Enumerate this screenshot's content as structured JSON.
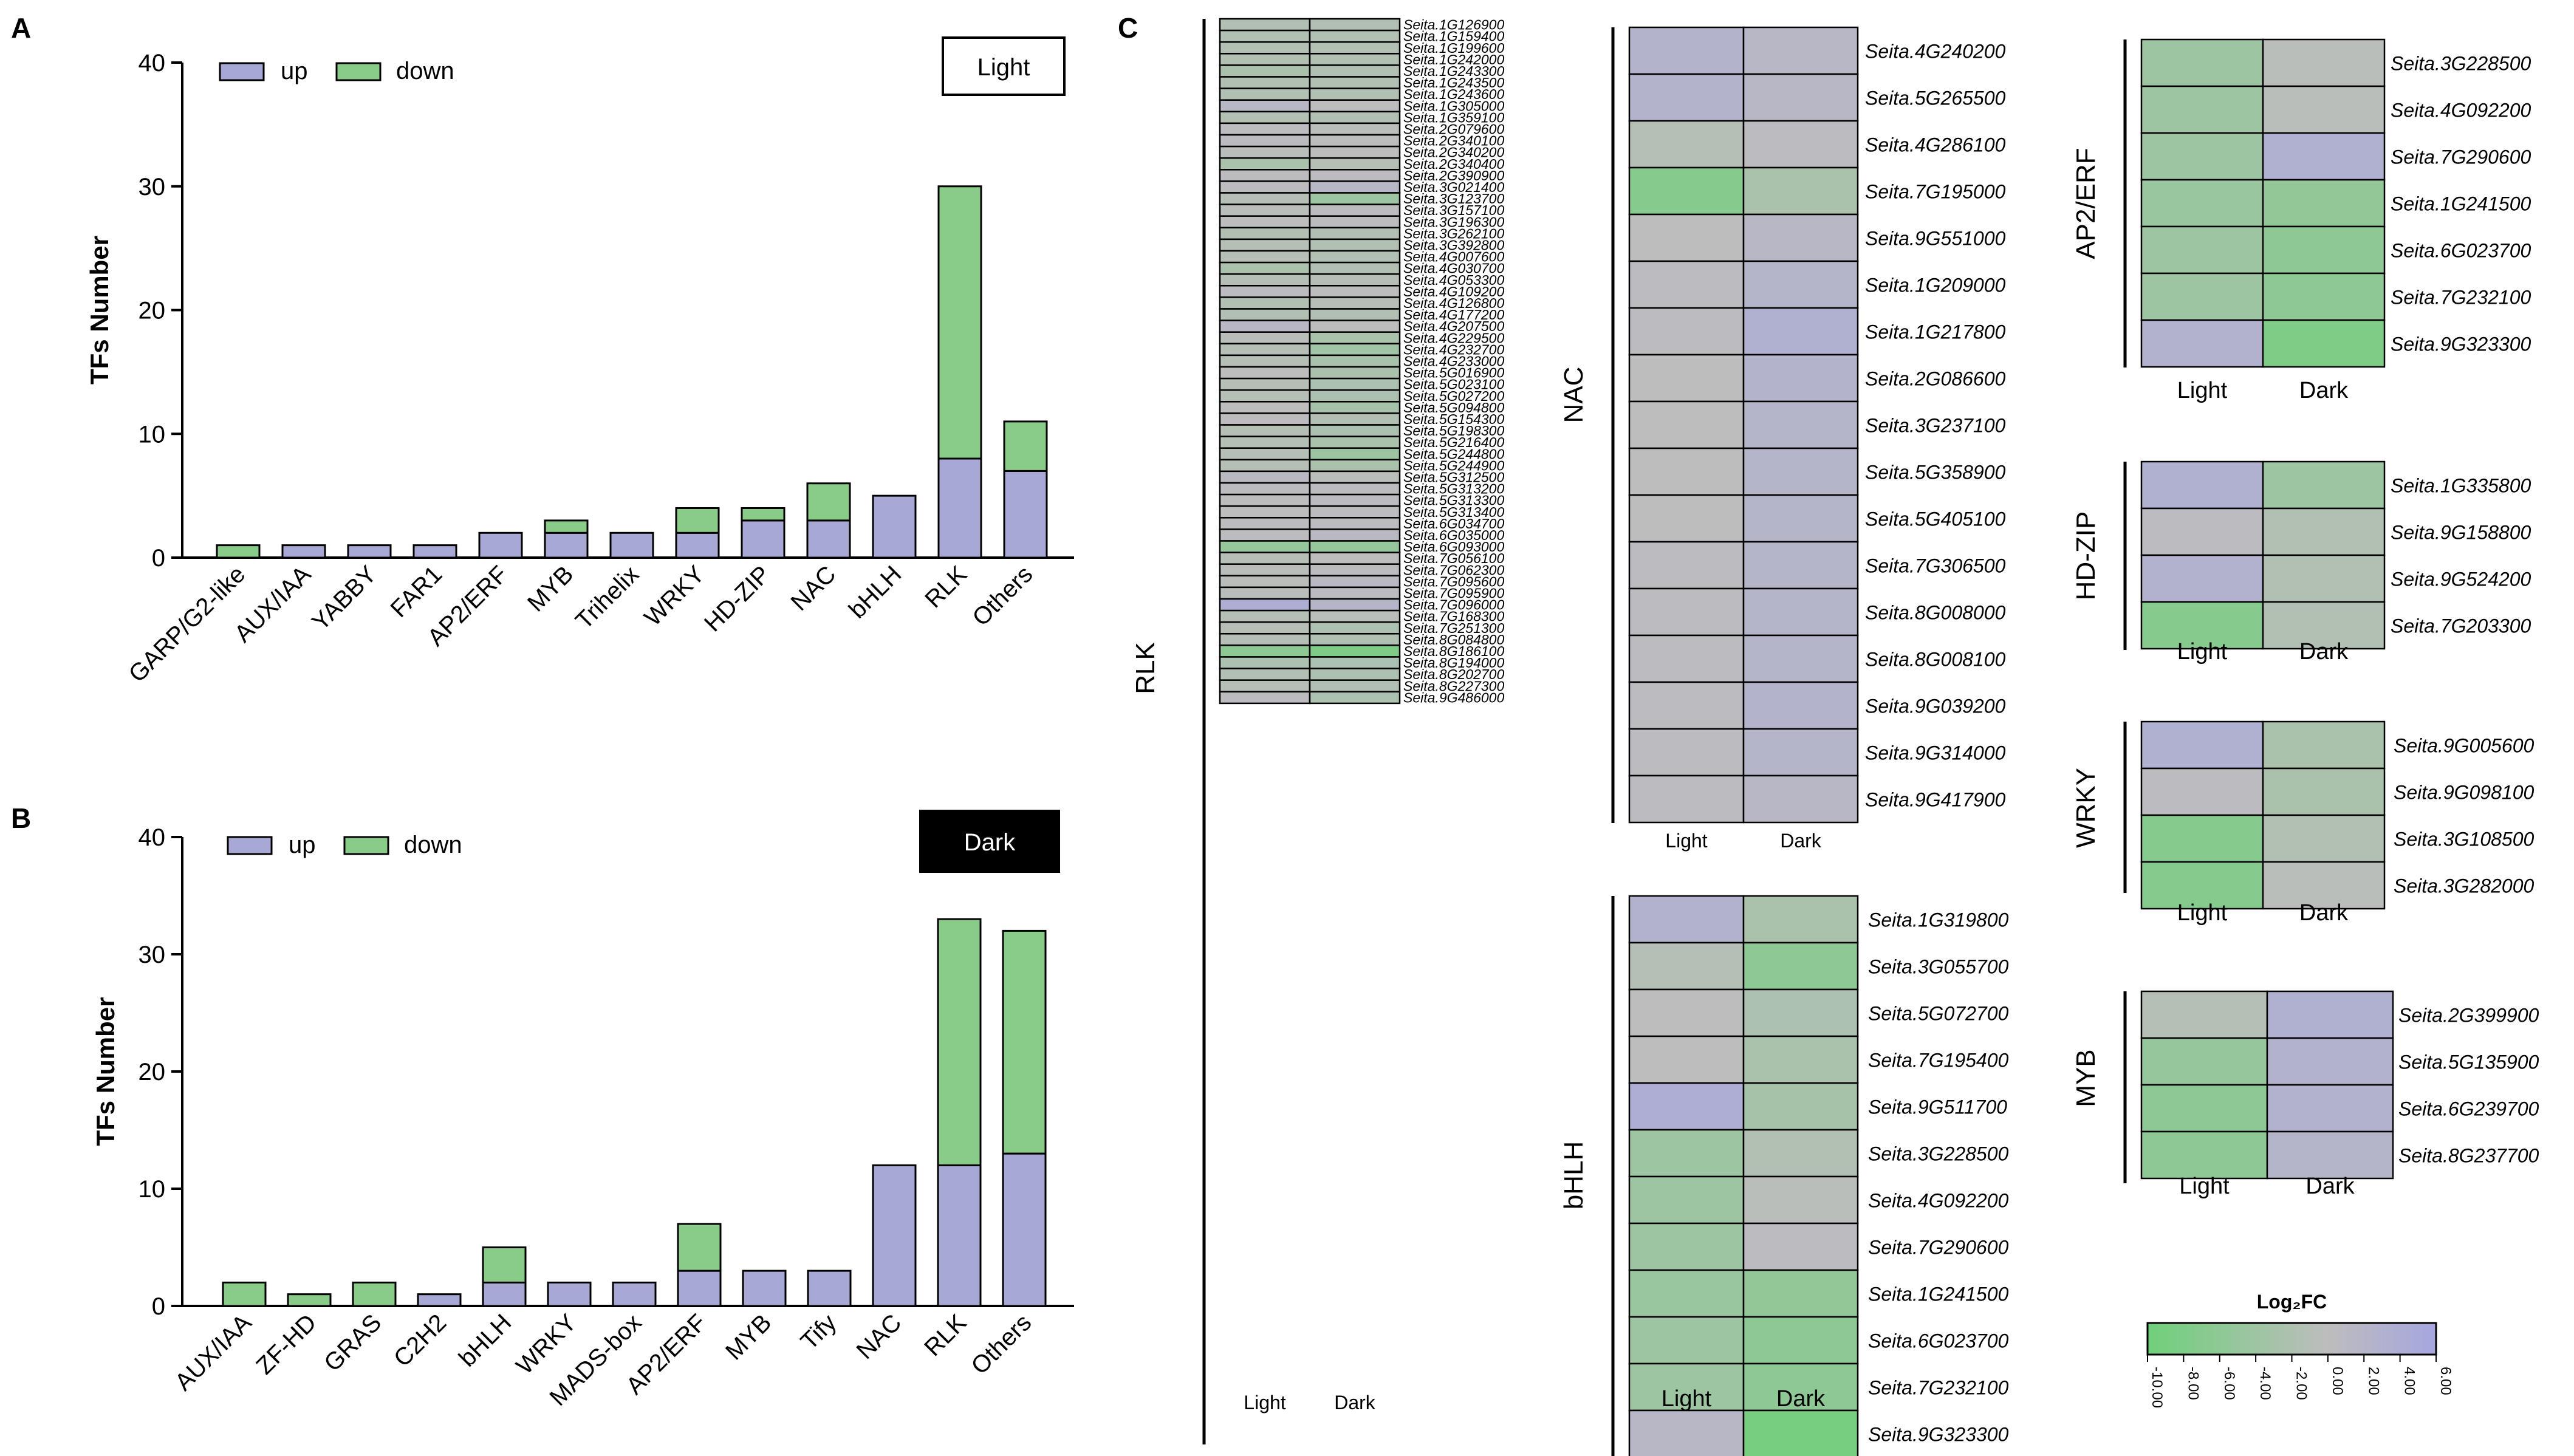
{
  "chart_data": [
    {
      "panel": "A",
      "type": "bar",
      "stacked": true,
      "condition": "Light",
      "ylabel": "TFs Number",
      "ylim": [
        0,
        40
      ],
      "yticks": [
        "0",
        "10",
        "20",
        "30",
        "40"
      ],
      "categories": [
        "GARP/G2-like",
        "AUX/IAA",
        "YABBY",
        "FAR1",
        "AP2/ERF",
        "MYB",
        "Trihelix",
        "WRKY",
        "HD-ZIP",
        "NAC",
        "bHLH",
        "RLK",
        "Others"
      ],
      "series": [
        {
          "name": "up",
          "color": "#a8a8d4",
          "values": [
            0,
            1,
            1,
            1,
            2,
            2,
            2,
            2,
            3,
            3,
            5,
            8,
            7
          ]
        },
        {
          "name": "down",
          "color": "#88cc88",
          "values": [
            1,
            0,
            0,
            0,
            0,
            1,
            0,
            2,
            1,
            3,
            0,
            22,
            4
          ]
        }
      ],
      "legend_position": "top-left"
    },
    {
      "panel": "B",
      "type": "bar",
      "stacked": true,
      "condition": "Dark",
      "ylabel": "TFs Number",
      "ylim": [
        0,
        40
      ],
      "yticks": [
        "0",
        "10",
        "20",
        "30",
        "40"
      ],
      "categories": [
        "AUX/IAA",
        "ZF-HD",
        "GRAS",
        "C2H2",
        "bHLH",
        "WRKY",
        "MADS-box",
        "AP2/ERF",
        "MYB",
        "Tify",
        "NAC",
        "RLK",
        "Others"
      ],
      "series": [
        {
          "name": "up",
          "color": "#a8a8d4",
          "values": [
            0,
            0,
            0,
            1,
            2,
            2,
            2,
            3,
            3,
            3,
            12,
            12,
            13
          ]
        },
        {
          "name": "down",
          "color": "#88cc88",
          "values": [
            2,
            1,
            2,
            0,
            3,
            0,
            0,
            4,
            0,
            0,
            0,
            21,
            19
          ]
        }
      ],
      "legend_position": "top-left"
    },
    {
      "panel": "C",
      "type": "heatmap",
      "columns": [
        "Light",
        "Dark"
      ],
      "colorbar": {
        "title": "Log₂FC",
        "range": [
          -10,
          6
        ],
        "tick_labels": [
          "-10.00",
          "-8.00",
          "-6.00",
          "-4.00",
          "-2.00",
          "0.00",
          "2.00",
          "4.00",
          "6.00"
        ],
        "low_color": "#6fd07a",
        "mid_color": "#bdbdbd",
        "high_color": "#a6a6e0"
      },
      "groups": [
        {
          "name": "RLK",
          "genes": [
            {
              "gene": "Seita.1G126900",
              "light": -1.5,
              "dark": -1.5
            },
            {
              "gene": "Seita.1G159400",
              "light": -1.5,
              "dark": -1.5
            },
            {
              "gene": "Seita.1G199600",
              "light": -1.5,
              "dark": -1.5
            },
            {
              "gene": "Seita.1G242000",
              "light": -1.5,
              "dark": -1.5
            },
            {
              "gene": "Seita.1G243300",
              "light": -2.5,
              "dark": -1.5
            },
            {
              "gene": "Seita.1G243500",
              "light": -1.5,
              "dark": -1.5
            },
            {
              "gene": "Seita.1G243600",
              "light": -1.5,
              "dark": -1.5
            },
            {
              "gene": "Seita.1G305000",
              "light": 1.5,
              "dark": 0
            },
            {
              "gene": "Seita.1G359100",
              "light": -1.5,
              "dark": -1.5
            },
            {
              "gene": "Seita.2G079600",
              "light": 0.5,
              "dark": -0.5
            },
            {
              "gene": "Seita.2G340100",
              "light": 0.5,
              "dark": 0
            },
            {
              "gene": "Seita.2G340200",
              "light": -0.5,
              "dark": 0
            },
            {
              "gene": "Seita.2G340400",
              "light": -2.5,
              "dark": -1
            },
            {
              "gene": "Seita.2G390900",
              "light": 0.5,
              "dark": 0.5
            },
            {
              "gene": "Seita.3G021400",
              "light": 0.5,
              "dark": 1.5
            },
            {
              "gene": "Seita.3G123700",
              "light": -1,
              "dark": -4
            },
            {
              "gene": "Seita.3G157100",
              "light": -0.5,
              "dark": 0.5
            },
            {
              "gene": "Seita.3G196300",
              "light": 0,
              "dark": 0.5
            },
            {
              "gene": "Seita.3G262100",
              "light": -1.5,
              "dark": -1.5
            },
            {
              "gene": "Seita.3G392800",
              "light": -1,
              "dark": -1.5
            },
            {
              "gene": "Seita.4G007600",
              "light": -1,
              "dark": -1.5
            },
            {
              "gene": "Seita.4G030700",
              "light": -2.5,
              "dark": -1.5
            },
            {
              "gene": "Seita.4G053300",
              "light": -1,
              "dark": -1
            },
            {
              "gene": "Seita.4G109200",
              "light": 0.5,
              "dark": 0
            },
            {
              "gene": "Seita.4G126800",
              "light": -1.5,
              "dark": -1
            },
            {
              "gene": "Seita.4G177200",
              "light": -1.5,
              "dark": -1.5
            },
            {
              "gene": "Seita.4G207500",
              "light": 1.5,
              "dark": 0
            },
            {
              "gene": "Seita.4G229500",
              "light": -0.5,
              "dark": -2.5
            },
            {
              "gene": "Seita.4G232700",
              "light": -1,
              "dark": -3.5
            },
            {
              "gene": "Seita.4G233000",
              "light": -1,
              "dark": -2.5
            },
            {
              "gene": "Seita.5G016900",
              "light": 0,
              "dark": -2.5
            },
            {
              "gene": "Seita.5G023100",
              "light": -1,
              "dark": -2
            },
            {
              "gene": "Seita.5G027200",
              "light": -1,
              "dark": -2
            },
            {
              "gene": "Seita.5G094800",
              "light": 0,
              "dark": -3
            },
            {
              "gene": "Seita.5G154300",
              "light": 0.5,
              "dark": -1.5
            },
            {
              "gene": "Seita.5G198300",
              "light": -1,
              "dark": -2
            },
            {
              "gene": "Seita.5G216400",
              "light": -1,
              "dark": -2.5
            },
            {
              "gene": "Seita.5G244800",
              "light": -1,
              "dark": -4
            },
            {
              "gene": "Seita.5G244900",
              "light": -1,
              "dark": -2.5
            },
            {
              "gene": "Seita.5G312500",
              "light": 1,
              "dark": -0.5
            },
            {
              "gene": "Seita.5G313200",
              "light": 0.5,
              "dark": 0.5
            },
            {
              "gene": "Seita.5G313300",
              "light": 0,
              "dark": 0.5
            },
            {
              "gene": "Seita.5G313400",
              "light": 0,
              "dark": 0.5
            },
            {
              "gene": "Seita.6G034700",
              "light": 0.5,
              "dark": 0.5
            },
            {
              "gene": "Seita.6G035000",
              "light": 0.5,
              "dark": 1
            },
            {
              "gene": "Seita.6G093000",
              "light": -5,
              "dark": -5
            },
            {
              "gene": "Seita.7G056100",
              "light": -1,
              "dark": 0
            },
            {
              "gene": "Seita.7G062300",
              "light": -0.5,
              "dark": 0.5
            },
            {
              "gene": "Seita.7G095600",
              "light": -0.5,
              "dark": 1
            },
            {
              "gene": "Seita.7G095900",
              "light": -0.5,
              "dark": 0.5
            },
            {
              "gene": "Seita.7G096000",
              "light": 4,
              "dark": 2
            },
            {
              "gene": "Seita.7G168300",
              "light": -1,
              "dark": -0.5
            },
            {
              "gene": "Seita.7G251300",
              "light": -1,
              "dark": -2
            },
            {
              "gene": "Seita.8G084800",
              "light": -1,
              "dark": -1.5
            },
            {
              "gene": "Seita.8G186100",
              "light": -6,
              "dark": -8
            },
            {
              "gene": "Seita.8G194000",
              "light": -2,
              "dark": -2
            },
            {
              "gene": "Seita.8G202700",
              "light": -1.5,
              "dark": -2
            },
            {
              "gene": "Seita.8G227300",
              "light": -1,
              "dark": -1.5
            },
            {
              "gene": "Seita.9G486000",
              "light": 0.5,
              "dark": -2
            }
          ]
        },
        {
          "name": "NAC",
          "genes": [
            {
              "gene": "Seita.4G240200",
              "light": 2.5,
              "dark": 1.5
            },
            {
              "gene": "Seita.5G265500",
              "light": 2.5,
              "dark": 1.5
            },
            {
              "gene": "Seita.4G286100",
              "light": -1,
              "dark": 0.5
            },
            {
              "gene": "Seita.7G195000",
              "light": -7,
              "dark": -2.5
            },
            {
              "gene": "Seita.9G551000",
              "light": 0,
              "dark": 1.5
            },
            {
              "gene": "Seita.1G209000",
              "light": 0.5,
              "dark": 2
            },
            {
              "gene": "Seita.1G217800",
              "light": 0.5,
              "dark": 3.5
            },
            {
              "gene": "Seita.2G086600",
              "light": 0,
              "dark": 2.5
            },
            {
              "gene": "Seita.3G237100",
              "light": 0,
              "dark": 2
            },
            {
              "gene": "Seita.5G358900",
              "light": 0,
              "dark": 2
            },
            {
              "gene": "Seita.5G405100",
              "light": 0,
              "dark": 2
            },
            {
              "gene": "Seita.7G306500",
              "light": 0.5,
              "dark": 2
            },
            {
              "gene": "Seita.8G008000",
              "light": 0.5,
              "dark": 2
            },
            {
              "gene": "Seita.8G008100",
              "light": 0.5,
              "dark": 2
            },
            {
              "gene": "Seita.9G039200",
              "light": 0.5,
              "dark": 2.5
            },
            {
              "gene": "Seita.9G314000",
              "light": 0.5,
              "dark": 2
            },
            {
              "gene": "Seita.9G417900",
              "light": 0.5,
              "dark": 1.5
            }
          ]
        },
        {
          "name": "bHLH",
          "genes": [
            {
              "gene": "Seita.1G319800",
              "light": 3,
              "dark": -2.5
            },
            {
              "gene": "Seita.3G055700",
              "light": -1,
              "dark": -6
            },
            {
              "gene": "Seita.5G072700",
              "light": 0,
              "dark": -2
            },
            {
              "gene": "Seita.7G195400",
              "light": 0,
              "dark": -2.5
            },
            {
              "gene": "Seita.9G511700",
              "light": 4,
              "dark": -3
            },
            {
              "gene": "Seita.3G228500",
              "light": -4,
              "dark": -1.5
            },
            {
              "gene": "Seita.4G092200",
              "light": -4,
              "dark": -0.5
            },
            {
              "gene": "Seita.7G290600",
              "light": -4,
              "dark": 0.5
            },
            {
              "gene": "Seita.1G241500",
              "light": -4.5,
              "dark": -5.5
            },
            {
              "gene": "Seita.6G023700",
              "light": -4,
              "dark": -6
            },
            {
              "gene": "Seita.7G232100",
              "light": -4,
              "dark": -6
            },
            {
              "gene": "Seita.9G323300",
              "light": 1.5,
              "dark": -9
            }
          ]
        },
        {
          "name": "AP2/ERF",
          "genes": [
            {
              "gene": "Seita.3G228500",
              "light": -4,
              "dark": -0.5
            },
            {
              "gene": "Seita.4G092200",
              "light": -4,
              "dark": -0.5
            },
            {
              "gene": "Seita.7G290600",
              "light": -4,
              "dark": 3.5
            },
            {
              "gene": "Seita.1G241500",
              "light": -4.5,
              "dark": -5.5
            },
            {
              "gene": "Seita.6G023700",
              "light": -4,
              "dark": -6
            },
            {
              "gene": "Seita.7G232100",
              "light": -4,
              "dark": -6
            },
            {
              "gene": "Seita.9G323300",
              "light": 3,
              "dark": -8
            }
          ]
        },
        {
          "name": "HD-ZIP",
          "genes": [
            {
              "gene": "Seita.1G335800",
              "light": 3.5,
              "dark": -4
            },
            {
              "gene": "Seita.9G158800",
              "light": 0.5,
              "dark": -1.5
            },
            {
              "gene": "Seita.9G524200",
              "light": 3,
              "dark": -1.5
            },
            {
              "gene": "Seita.7G203300",
              "light": -7,
              "dark": -1.5
            }
          ]
        },
        {
          "name": "WRKY",
          "genes": [
            {
              "gene": "Seita.9G005600",
              "light": 3.5,
              "dark": -2.5
            },
            {
              "gene": "Seita.9G098100",
              "light": 0.5,
              "dark": -2.5
            },
            {
              "gene": "Seita.3G108500",
              "light": -7,
              "dark": -1.5
            },
            {
              "gene": "Seita.3G282000",
              "light": -7,
              "dark": -0.5
            }
          ]
        },
        {
          "name": "MYB",
          "genes": [
            {
              "gene": "Seita.2G399900",
              "light": -1,
              "dark": 3.5
            },
            {
              "gene": "Seita.5G135900",
              "light": -5,
              "dark": 3
            },
            {
              "gene": "Seita.6G239700",
              "light": -6,
              "dark": 3
            },
            {
              "gene": "Seita.8G237700",
              "light": -6,
              "dark": 2
            }
          ]
        }
      ]
    }
  ]
}
